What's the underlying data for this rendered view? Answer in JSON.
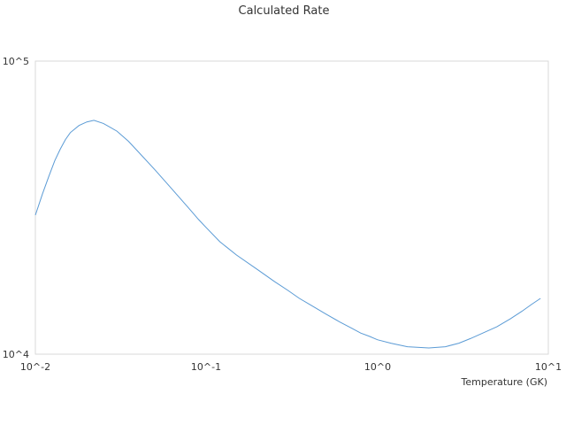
{
  "chart_data": {
    "type": "line",
    "title": "Calculated Rate",
    "xlabel": "Temperature (GK)",
    "ylabel": "",
    "xscale": "log",
    "yscale": "log",
    "xlim": [
      0.01,
      10
    ],
    "ylim": [
      10000,
      100000
    ],
    "grid": false,
    "legend": "none",
    "x_tick_labels": [
      "10^-2",
      "10^-1",
      "10^0",
      "10^1"
    ],
    "y_tick_labels": [
      "10^4",
      "10^5"
    ],
    "series": [
      {
        "color": "#5b9bd5",
        "x": [
          0.01,
          0.011,
          0.012,
          0.013,
          0.014,
          0.015,
          0.016,
          0.018,
          0.02,
          0.022,
          0.025,
          0.03,
          0.035,
          0.04,
          0.05,
          0.06,
          0.07,
          0.08,
          0.09,
          0.1,
          0.12,
          0.15,
          0.2,
          0.25,
          0.3,
          0.35,
          0.4,
          0.5,
          0.6,
          0.7,
          0.8,
          0.9,
          1.0,
          1.2,
          1.5,
          2.0,
          2.5,
          3.0,
          3.5,
          4.0,
          5.0,
          6.0,
          7.0,
          8.0,
          9.0
        ],
        "y": [
          29800,
          35200,
          40500,
          45800,
          50200,
          54000,
          57000,
          60300,
          62000,
          62800,
          61300,
          57700,
          53300,
          49000,
          42600,
          37800,
          34100,
          31200,
          28800,
          27000,
          24200,
          21800,
          19400,
          17700,
          16500,
          15500,
          14800,
          13700,
          12900,
          12300,
          11800,
          11500,
          11200,
          10900,
          10600,
          10500,
          10600,
          10900,
          11300,
          11700,
          12400,
          13200,
          14000,
          14800,
          15500
        ]
      }
    ]
  }
}
